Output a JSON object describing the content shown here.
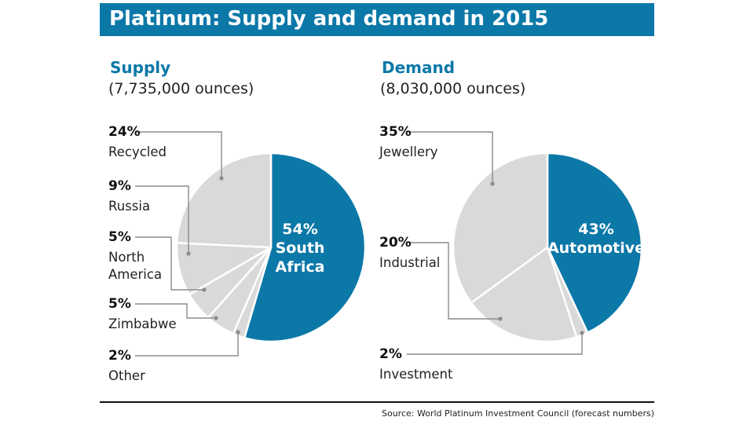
{
  "title": "Platinum: Supply and demand in 2015",
  "source": "Source: World Platinum Investment Council (forecast numbers)",
  "colors": {
    "accent": "#0b78a8",
    "slice": "#d9d9d9",
    "leader": "#8c8c8c"
  },
  "chart_data": [
    {
      "type": "pie",
      "heading": "Supply",
      "total": "(7,735,000 ounces)",
      "start_angle_deg": 0,
      "slices": [
        {
          "label": "South Africa",
          "label_lines": [
            "South",
            "Africa"
          ],
          "percent_text": "54%",
          "value": 54,
          "highlight": true
        },
        {
          "label": "Other",
          "label_lines": [
            "Other"
          ],
          "percent_text": "2%",
          "value": 2,
          "highlight": false
        },
        {
          "label": "Zimbabwe",
          "label_lines": [
            "Zimbabwe"
          ],
          "percent_text": "5%",
          "value": 5,
          "highlight": false
        },
        {
          "label": "North America",
          "label_lines": [
            "North",
            "America"
          ],
          "percent_text": "5%",
          "value": 5,
          "highlight": false
        },
        {
          "label": "Russia",
          "label_lines": [
            "Russia"
          ],
          "percent_text": "9%",
          "value": 9,
          "highlight": false
        },
        {
          "label": "Recycled",
          "label_lines": [
            "Recycled"
          ],
          "percent_text": "24%",
          "value": 24,
          "highlight": false
        }
      ]
    },
    {
      "type": "pie",
      "heading": "Demand",
      "total": "(8,030,000 ounces)",
      "start_angle_deg": 0,
      "slices": [
        {
          "label": "Automotive",
          "label_lines": [
            "Automotive"
          ],
          "percent_text": "43%",
          "value": 43,
          "highlight": true
        },
        {
          "label": "Investment",
          "label_lines": [
            "Investment"
          ],
          "percent_text": "2%",
          "value": 2,
          "highlight": false
        },
        {
          "label": "Industrial",
          "label_lines": [
            "Industrial"
          ],
          "percent_text": "20%",
          "value": 20,
          "highlight": false
        },
        {
          "label": "Jewellery",
          "label_lines": [
            "Jewellery"
          ],
          "percent_text": "35%",
          "value": 35,
          "highlight": false
        }
      ]
    }
  ]
}
